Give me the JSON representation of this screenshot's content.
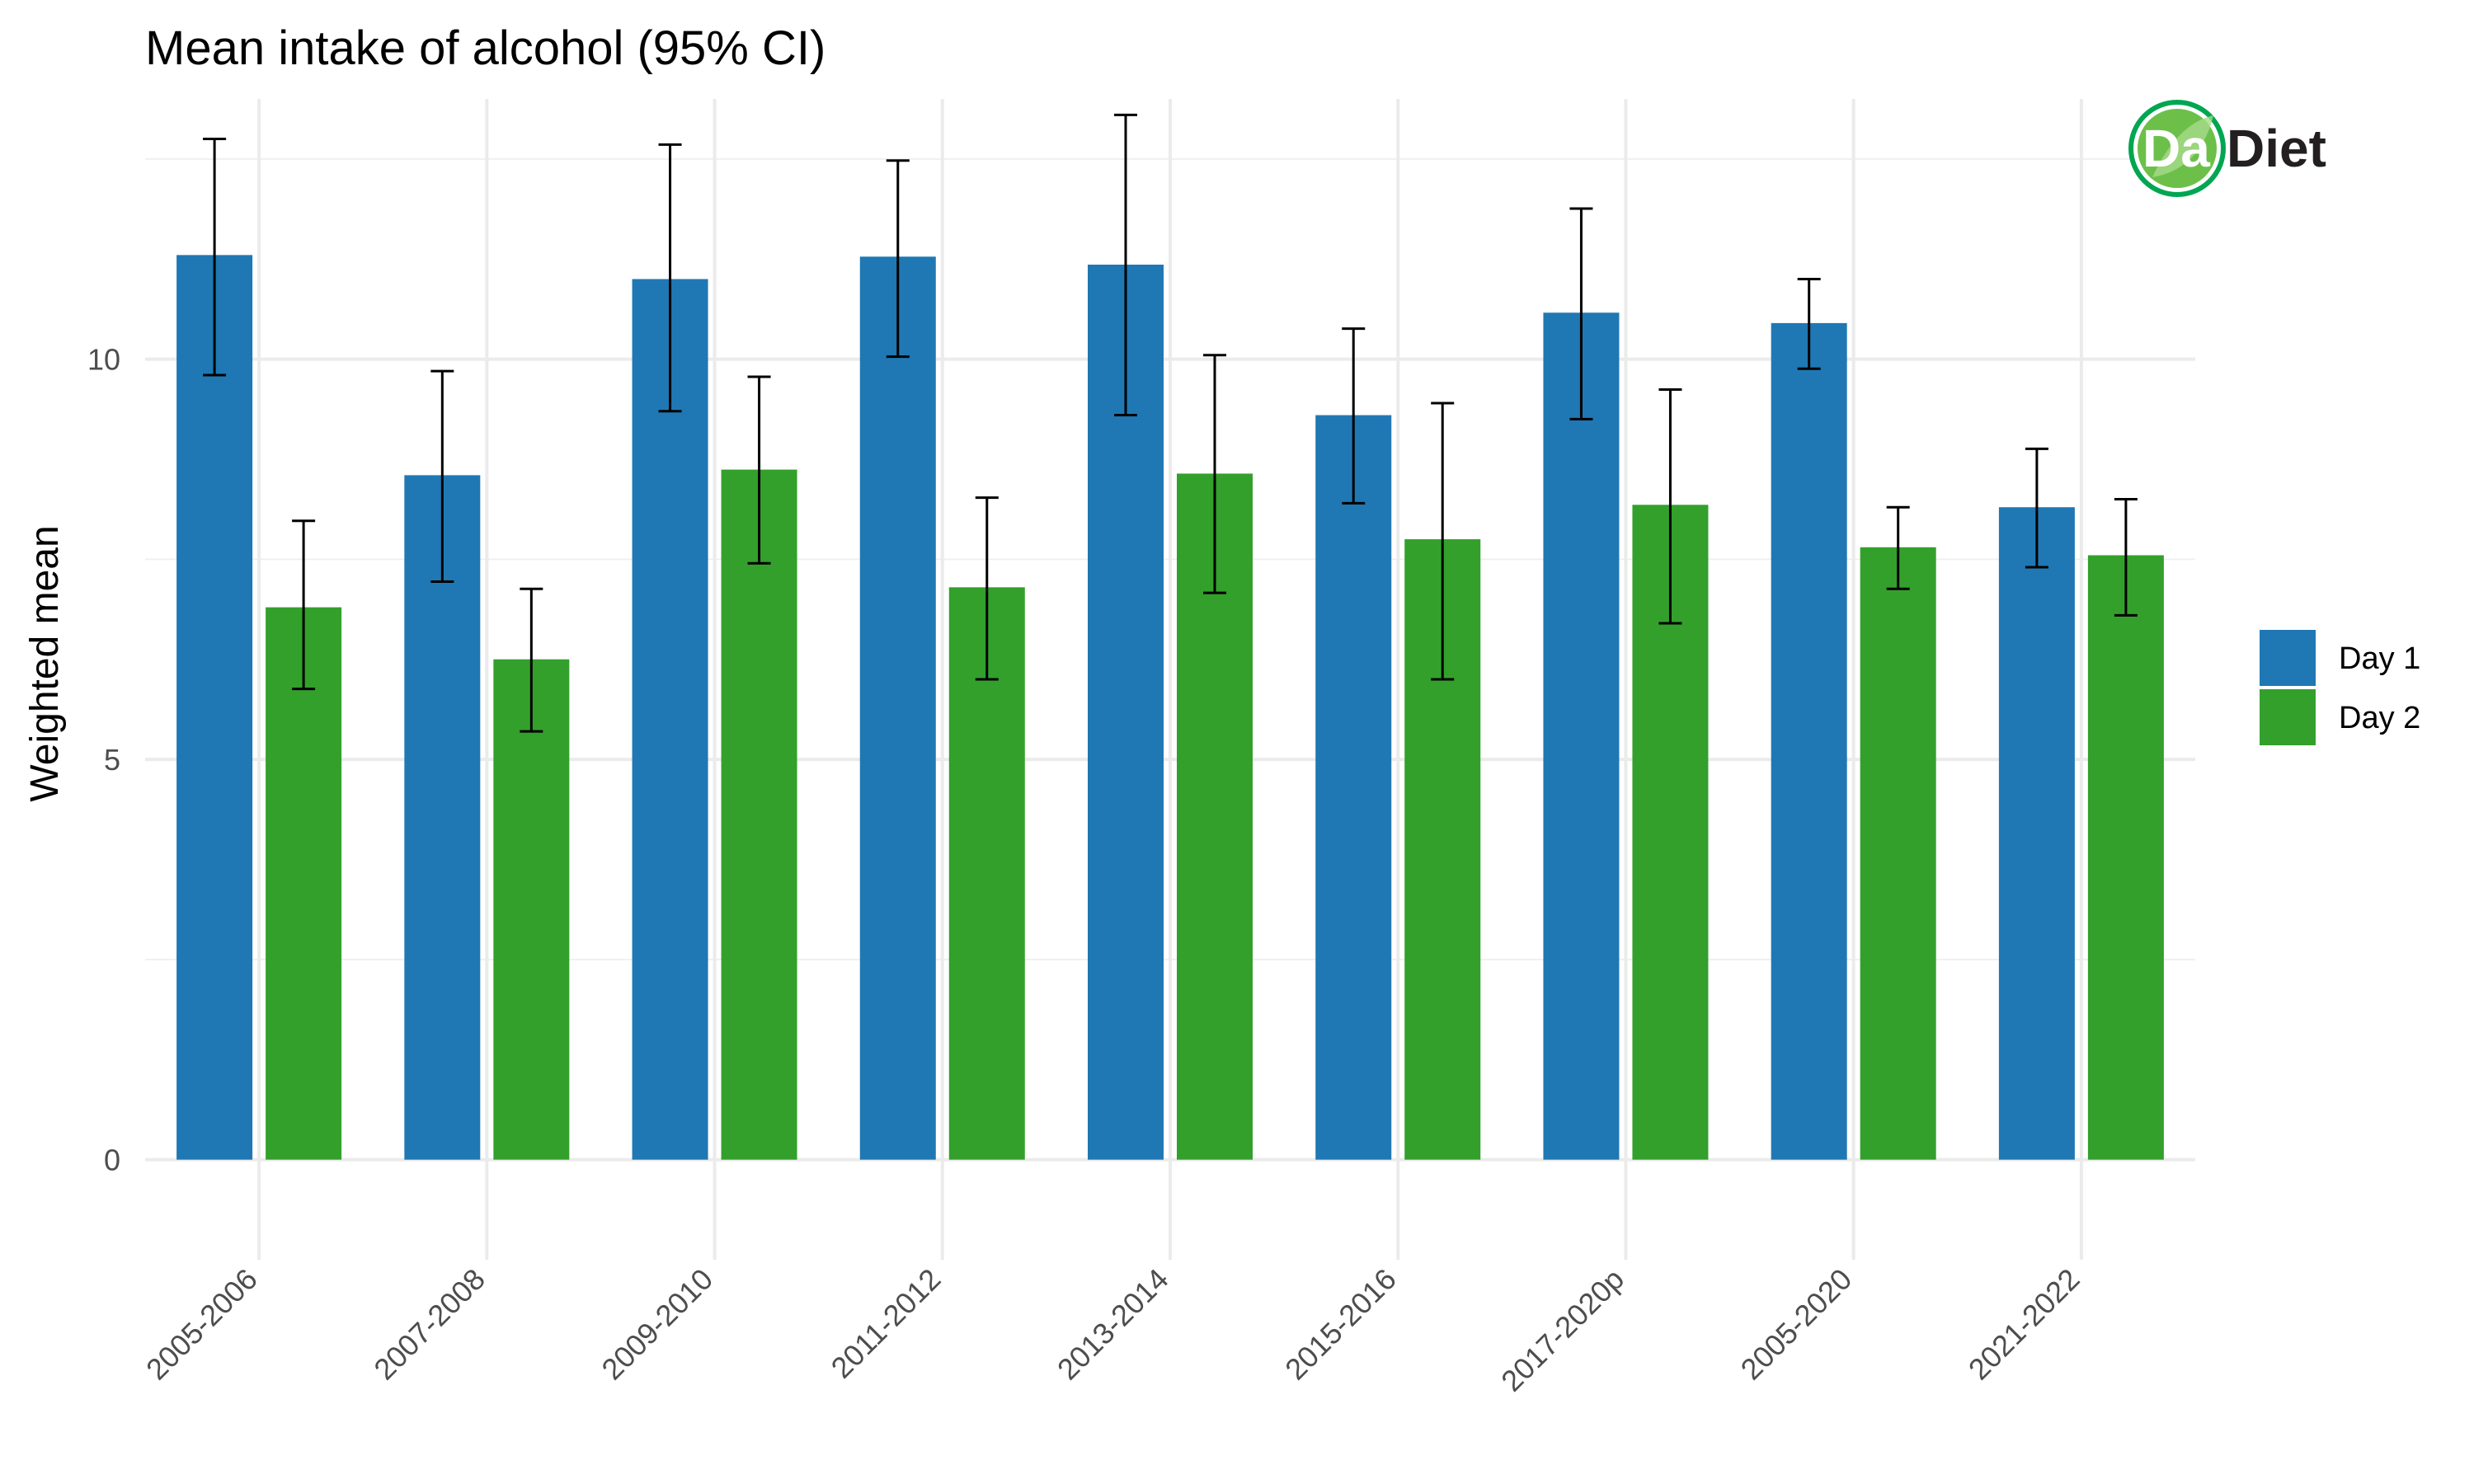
{
  "chart_data": {
    "type": "bar",
    "title": "Mean intake of alcohol (95% CI)",
    "xlabel": "",
    "ylabel": "Weighted mean",
    "ylim": [
      -1.25,
      13.25
    ],
    "yticks": [
      0,
      5,
      10
    ],
    "grid": true,
    "legend_position": "right",
    "categories": [
      "2005-2006",
      "2007-2008",
      "2009-2010",
      "2011-2012",
      "2013-2014",
      "2015-2016",
      "2017-2020p",
      "2005-2020",
      "2021-2022"
    ],
    "series": [
      {
        "name": "Day 1",
        "color": "#1f78b4",
        "values": [
          11.3,
          8.55,
          11.0,
          11.28,
          11.18,
          9.3,
          10.58,
          10.45,
          8.15
        ],
        "ci_low": [
          9.8,
          7.22,
          9.35,
          10.03,
          9.3,
          8.2,
          9.25,
          9.88,
          7.4
        ],
        "ci_high": [
          12.75,
          9.85,
          12.68,
          12.48,
          13.05,
          10.38,
          11.88,
          11.0,
          8.88
        ]
      },
      {
        "name": "Day 2",
        "color": "#33a02c",
        "values": [
          6.9,
          6.25,
          8.62,
          7.15,
          8.57,
          7.75,
          8.18,
          7.65,
          7.55
        ],
        "ci_low": [
          5.88,
          5.35,
          7.45,
          6.0,
          7.08,
          6.0,
          6.7,
          7.13,
          6.8
        ],
        "ci_high": [
          7.98,
          7.13,
          9.78,
          8.27,
          10.05,
          9.45,
          9.62,
          8.15,
          8.25
        ]
      }
    ]
  },
  "logo": {
    "part1": "Da",
    "part2": "Diet",
    "ring_color": "#00a651",
    "fill_color": "#6cc04a",
    "text_color": "#231f20"
  }
}
